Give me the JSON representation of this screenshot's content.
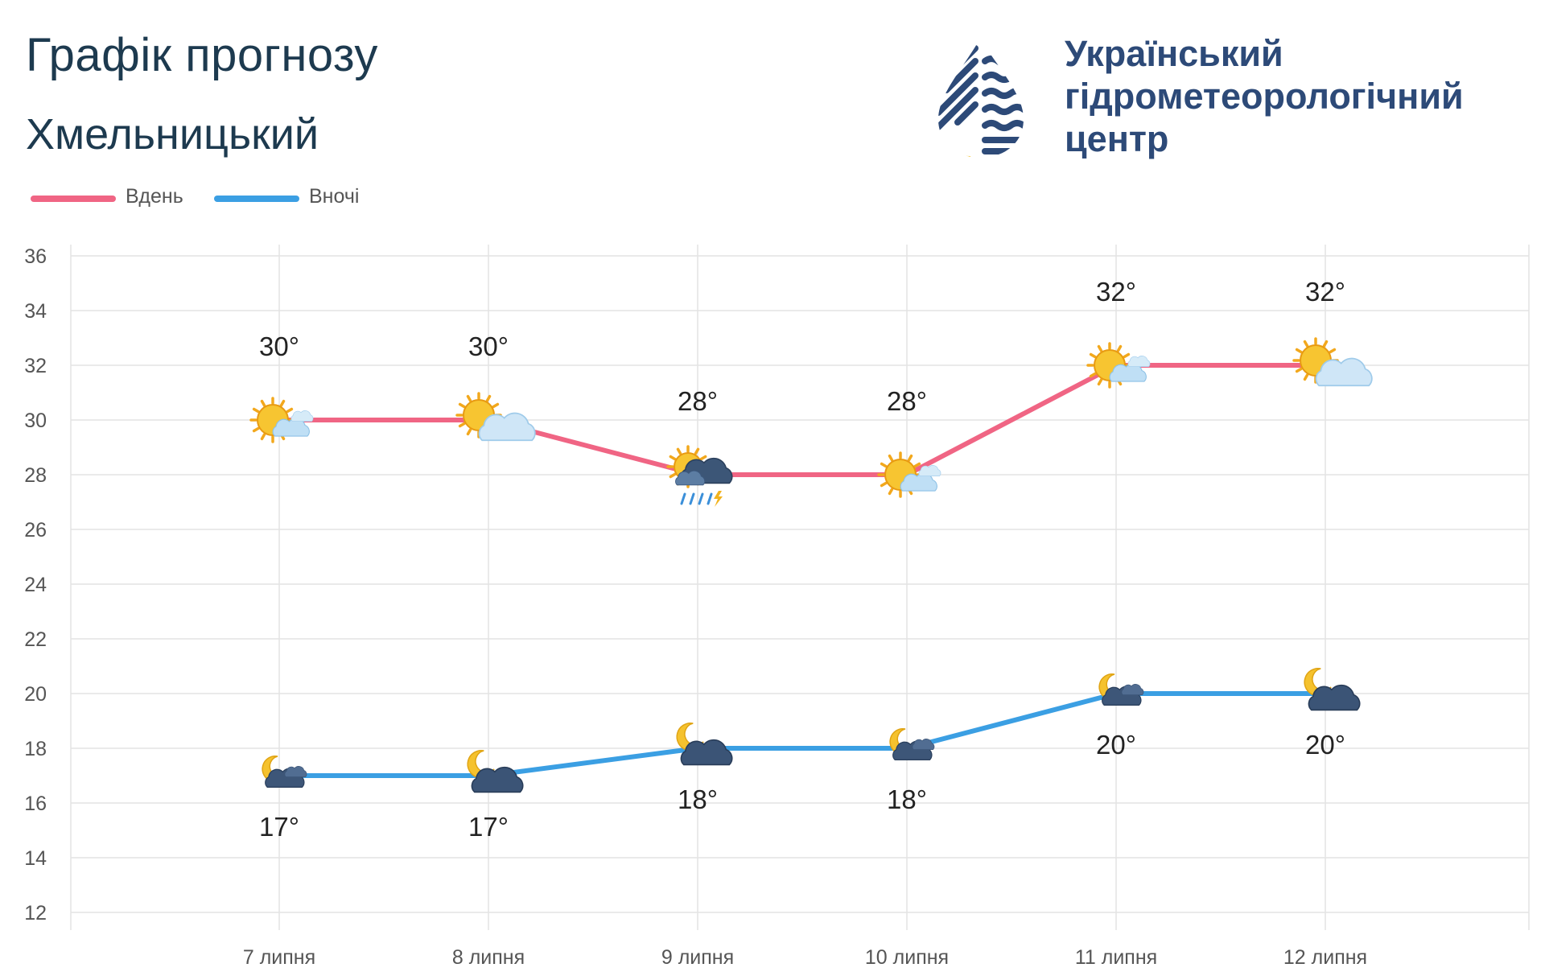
{
  "header": {
    "title": "Графік прогнозу",
    "city": "Хмельницький"
  },
  "logo": {
    "line1": "Український",
    "line2": "гідрометеорологічний",
    "line3": "центр"
  },
  "legend": {
    "day_label": "Вдень",
    "night_label": "Вночі"
  },
  "colors": {
    "day": "#f06584",
    "night": "#3b9fe3",
    "text": "#1d3a4f",
    "logo": "#2d4a78",
    "logo_accent": "#f1c230"
  },
  "chart_data": {
    "type": "line",
    "title": "Графік прогнозу",
    "subtitle": "Хмельницький",
    "categories": [
      "7 липня",
      "8 липня",
      "9 липня",
      "10 липня",
      "11 липня",
      "12 липня"
    ],
    "series": [
      {
        "name": "Вдень",
        "values": [
          30,
          30,
          28,
          28,
          32,
          32
        ],
        "labels": [
          "30°",
          "30°",
          "28°",
          "28°",
          "32°",
          "32°"
        ],
        "icons": [
          "sun-small-cloud",
          "sun-cloud",
          "sun-storm-rain",
          "sun-small-cloud",
          "sun-small-cloud",
          "sun-cloud"
        ]
      },
      {
        "name": "Вночі",
        "values": [
          17,
          17,
          18,
          18,
          20,
          20
        ],
        "labels": [
          "17°",
          "17°",
          "18°",
          "18°",
          "20°",
          "20°"
        ],
        "icons": [
          "moon-cloud-small",
          "moon-cloud",
          "moon-cloud",
          "moon-cloud-small",
          "moon-cloud-small",
          "moon-cloud"
        ]
      }
    ],
    "ylim": [
      12,
      36
    ],
    "yticks": [
      "12",
      "14",
      "16",
      "18",
      "20",
      "22",
      "24",
      "26",
      "28",
      "30",
      "32",
      "34",
      "36"
    ],
    "grid": true,
    "legend": "top-left"
  }
}
